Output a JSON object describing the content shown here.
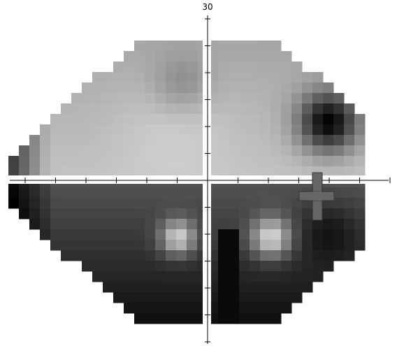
{
  "axis_label": "30"
}
